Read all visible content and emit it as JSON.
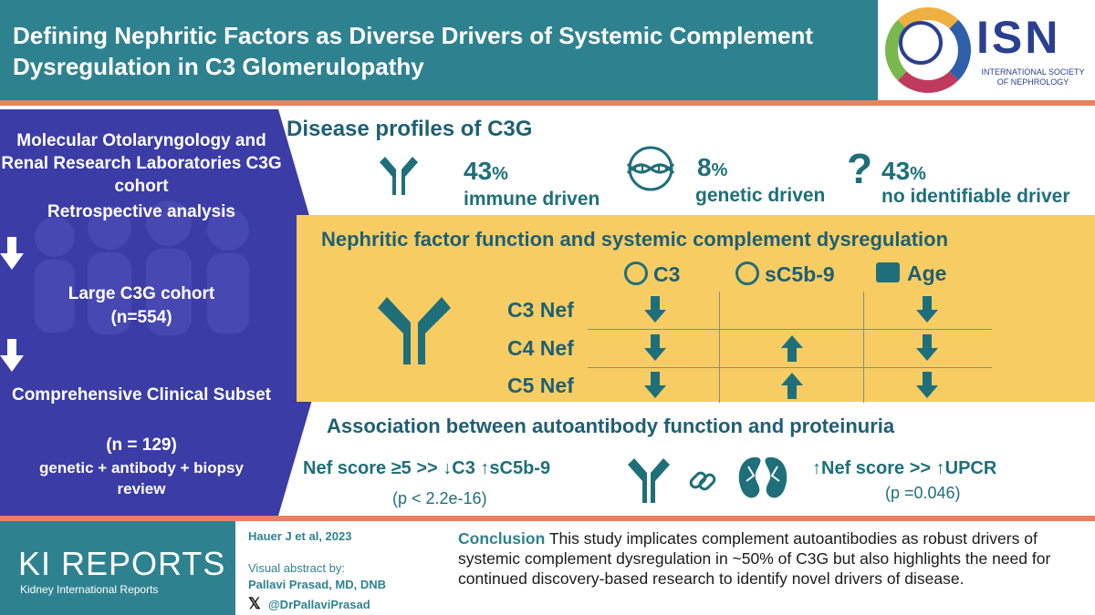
{
  "header": {
    "title": "Defining Nephritic Factors as Diverse Drivers of Systemic Complement Dysregulation in C3 Glomerulopathy",
    "logo": {
      "letters": "ISN",
      "subtitle": "INTERNATIONAL SOCIETY OF NEPHROLOGY"
    }
  },
  "cohort": {
    "heading": "Molecular Otolaryngology and Renal Research Laboratories C3G cohort",
    "analysis": "Retrospective analysis",
    "large_label": "Large C3G cohort",
    "large_n": "(n=554)",
    "subset_label": "Comprehensive Clinical Subset",
    "subset_n": "(n = 129)",
    "subset_detail": "genetic + antibody + biopsy review"
  },
  "profiles": {
    "title": "Disease profiles of C3G",
    "items": [
      {
        "value": "43",
        "unit": "%",
        "label": "immune driven",
        "icon": "antibody-icon"
      },
      {
        "value": "8",
        "unit": "%",
        "label": "genetic driven",
        "icon": "dna-icon"
      },
      {
        "value": "43",
        "unit": "%",
        "label": "no identifiable driver",
        "icon": "question-icon"
      }
    ]
  },
  "nef": {
    "title": "Nephritic factor function and systemic complement dysregulation",
    "columns": [
      "C3",
      "sC5b-9",
      "Age"
    ],
    "rows": [
      {
        "label": "C3 Nef",
        "effects": [
          "down",
          "",
          "down"
        ]
      },
      {
        "label": "C4 Nef",
        "effects": [
          "down",
          "up",
          "down"
        ]
      },
      {
        "label": "C5 Nef",
        "effects": [
          "down",
          "up",
          "down"
        ]
      }
    ],
    "colors": {
      "arrow": "#1f6f7a",
      "panel": "#f7cd63"
    }
  },
  "association": {
    "title": "Association between autoantibody function and proteinuria",
    "left_text": "Nef score ≥5  >> ↓C3 ↑sC5b-9",
    "left_p": "(p < 2.2e-16)",
    "right_text": "↑Nef score >> ↑UPCR",
    "right_p": "(p =0.046)"
  },
  "footer": {
    "journal": "KI REPORTS",
    "journal_sub": "Kidney International Reports",
    "citation": "Hauer J et al, 2023",
    "va_label": "Visual abstract by:",
    "va_name": "Pallavi Prasad, MD, DNB",
    "va_handle": "@DrPallaviPrasad",
    "conclusion_label": "Conclusion",
    "conclusion_text": "This study implicates complement  autoantibodies as robust drivers of systemic complement  dysregulation  in ~50% of C3G but also highlights  the need for continued discovery-based research to identify novel drivers of disease."
  }
}
